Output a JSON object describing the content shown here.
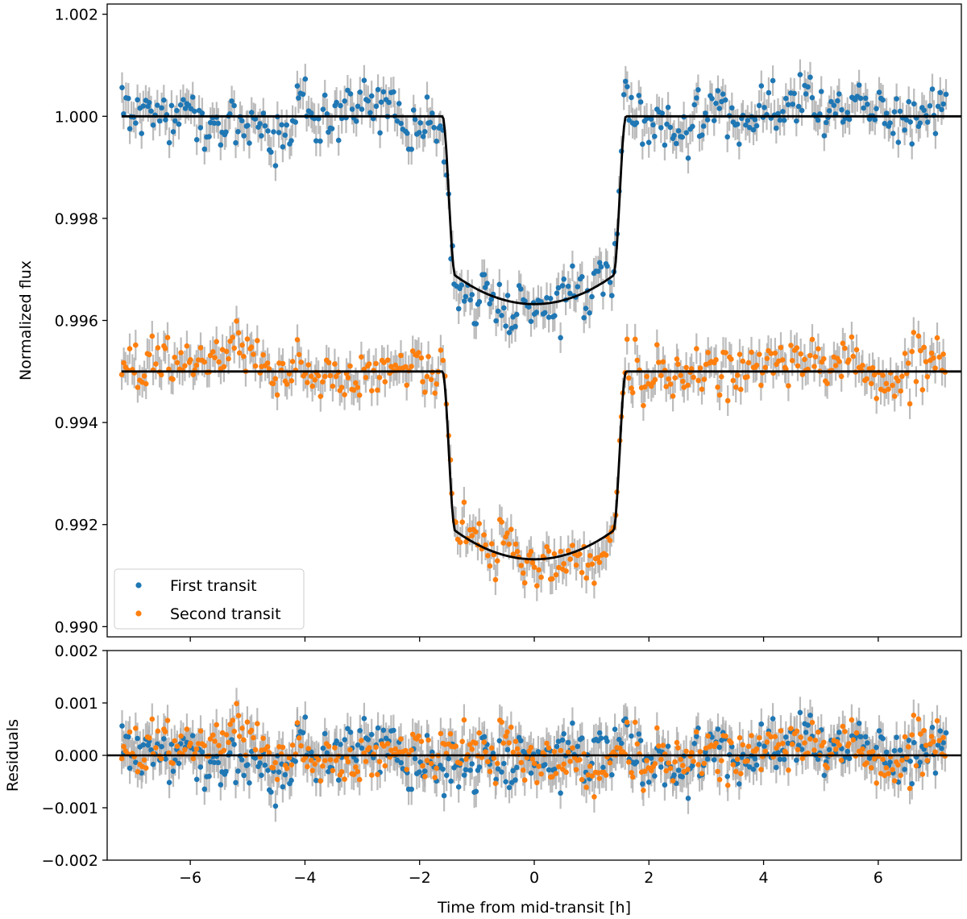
{
  "chart_data": [
    {
      "type": "scatter",
      "panel": "top",
      "ylabel": "Normalized flux",
      "xlabel": "",
      "xlim": [
        -7.45,
        7.45
      ],
      "ylim": [
        0.9898,
        1.0022
      ],
      "xticks": [
        -6,
        -4,
        -2,
        0,
        2,
        4,
        6
      ],
      "yticks": [
        0.99,
        0.992,
        0.994,
        0.996,
        0.998,
        1.0,
        1.002
      ],
      "ytick_labels": [
        "0.990",
        "0.992",
        "0.994",
        "0.996",
        "0.998",
        "1.000",
        "1.002"
      ],
      "legend_position": "lower-left",
      "grid": false,
      "error_bar_sigma": 0.0003,
      "series": [
        {
          "name": "First transit",
          "color": "#1f77b4",
          "baseline": 1.0,
          "depth_center": 0.99632,
          "depth_at_contact": 0.99688,
          "ingress": [
            -1.6,
            -1.38
          ],
          "egress": [
            1.38,
            1.6
          ],
          "x_range": [
            -7.2,
            7.2
          ],
          "n_points": 420,
          "scatter": 0.00027
        },
        {
          "name": "Second transit",
          "color": "#ff7f0e",
          "baseline": 0.995,
          "depth_center": 0.99132,
          "depth_at_contact": 0.99188,
          "ingress": [
            -1.6,
            -1.38
          ],
          "egress": [
            1.38,
            1.6
          ],
          "x_range": [
            -7.2,
            7.2
          ],
          "n_points": 420,
          "scatter": 0.00027
        }
      ],
      "model_color": "#000000",
      "errorbar_color": "#b0b0b0"
    },
    {
      "type": "scatter",
      "panel": "bottom",
      "ylabel": "Residuals",
      "xlabel": "Time from mid-transit [h]",
      "xlim": [
        -7.45,
        7.45
      ],
      "ylim": [
        -0.002,
        0.002
      ],
      "xticks": [
        -6,
        -4,
        -2,
        0,
        2,
        4,
        6
      ],
      "xtick_labels": [
        "−6",
        "−4",
        "−2",
        "0",
        "2",
        "4",
        "6"
      ],
      "yticks": [
        -0.002,
        -0.001,
        0.0,
        0.001,
        0.002
      ],
      "ytick_labels": [
        "−0.002",
        "−0.001",
        "0.000",
        "0.001",
        "0.002"
      ],
      "zero_line": 0.0,
      "series": [
        {
          "name": "First transit",
          "color": "#1f77b4"
        },
        {
          "name": "Second transit",
          "color": "#ff7f0e"
        }
      ]
    }
  ]
}
